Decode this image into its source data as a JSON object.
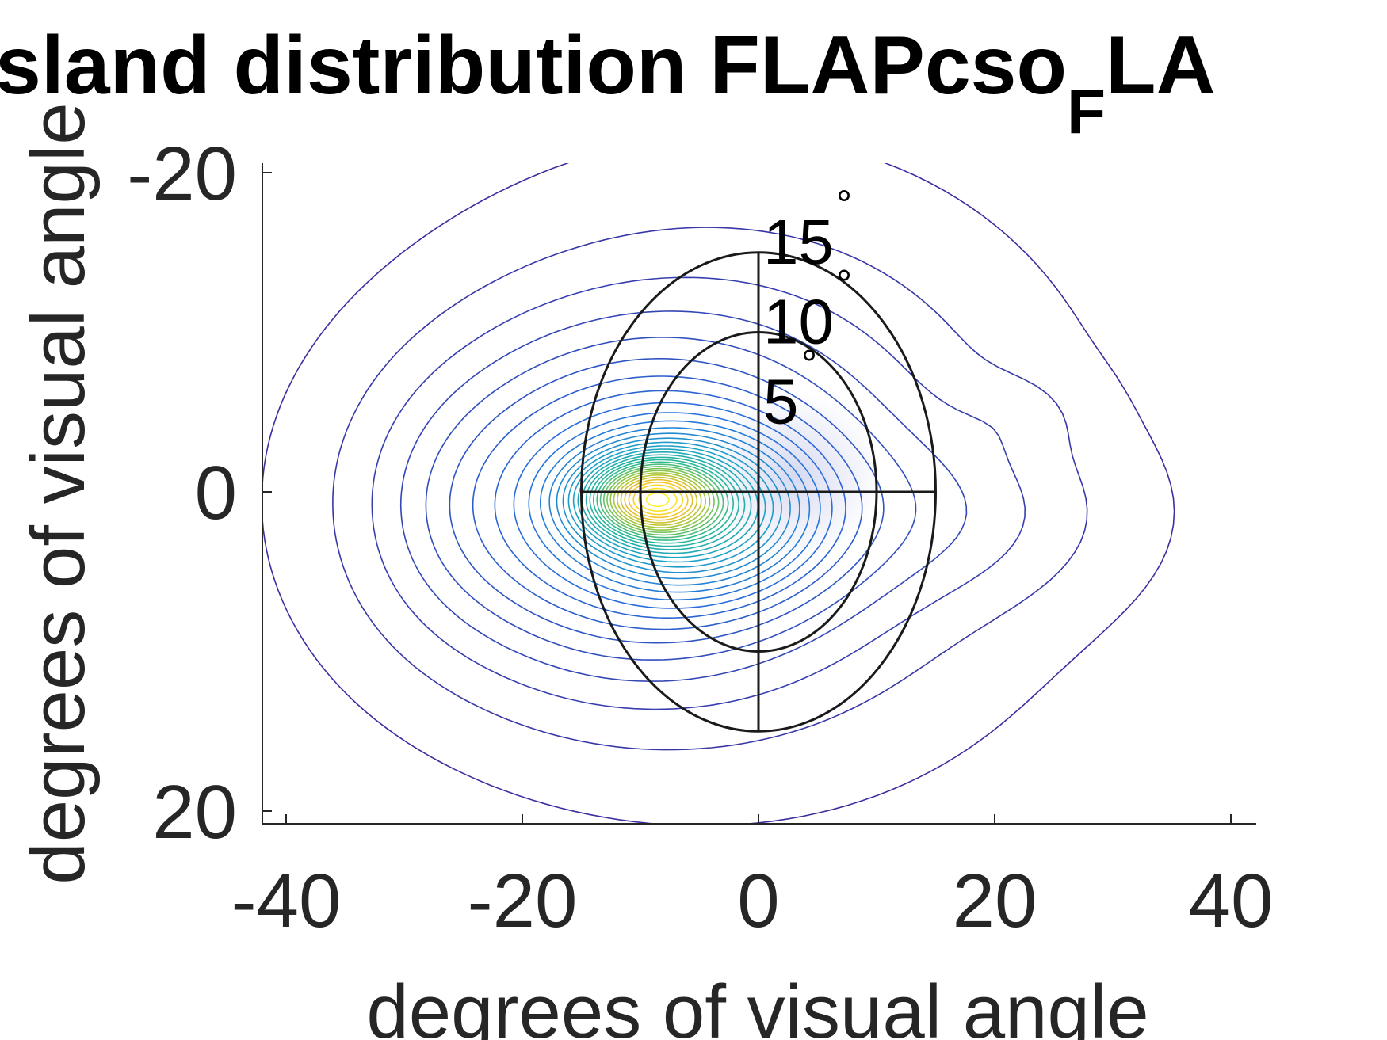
{
  "chart_data": {
    "type": "contour",
    "title_main": "sland distribution FLAPcso",
    "title_subscript": "F",
    "title_tail": "LA",
    "xlabel": "degrees of visual angle",
    "ylabel": "degrees of visual angle",
    "xlim": [
      -42,
      42
    ],
    "ylim": [
      -21,
      21
    ],
    "y_reversed": true,
    "x_ticks": [
      -40,
      -20,
      0,
      20,
      40
    ],
    "x_tick_labels": [
      "-40",
      "-20",
      "0",
      "20",
      "40"
    ],
    "y_ticks": [
      -20,
      0,
      20
    ],
    "y_tick_labels": [
      "-20",
      "0",
      "20"
    ],
    "eccentricity_rings": [
      {
        "radius": 10,
        "label": "10",
        "degree_mark": "°"
      },
      {
        "radius": 15,
        "label": "15",
        "degree_mark": "°"
      }
    ],
    "inner_label": {
      "radius": 5,
      "label": "5",
      "degree_mark": "°"
    },
    "density_peak": {
      "x": -9,
      "y": 0.3
    },
    "contour_levels": 34,
    "colormap": "parula",
    "colors": {
      "low": "#3a2fa0",
      "mid_low": "#2f7fd8",
      "mid": "#1fb7b0",
      "mid_high": "#8ccb3a",
      "high": "#f4c020",
      "peak": "#fff32a",
      "axis": "#262626",
      "ring": "#1a1a1a"
    }
  }
}
